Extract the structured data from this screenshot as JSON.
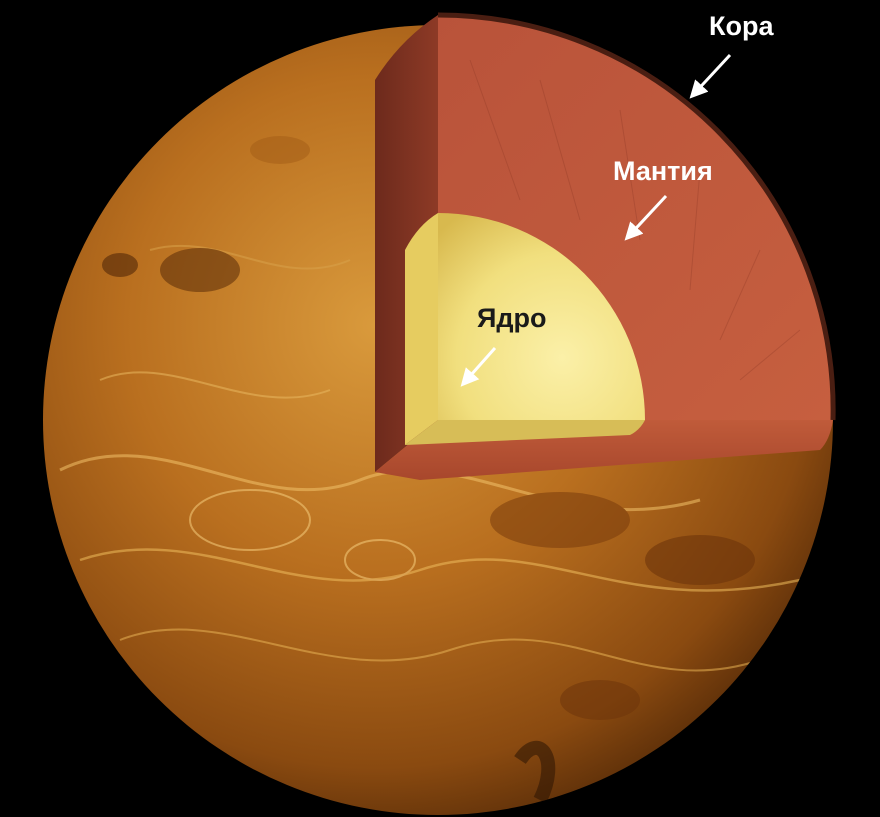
{
  "labels": {
    "crust": "Кора",
    "mantle": "Мантия",
    "core": "Ядро"
  },
  "colors": {
    "background": "#000000",
    "crust_label": "#ffffff",
    "mantle_label": "#ffffff",
    "core_label": "#1a1a1a",
    "mantle_face": "#c0583a",
    "mantle_dark": "#7a3022",
    "core": "#f0dc7a"
  }
}
